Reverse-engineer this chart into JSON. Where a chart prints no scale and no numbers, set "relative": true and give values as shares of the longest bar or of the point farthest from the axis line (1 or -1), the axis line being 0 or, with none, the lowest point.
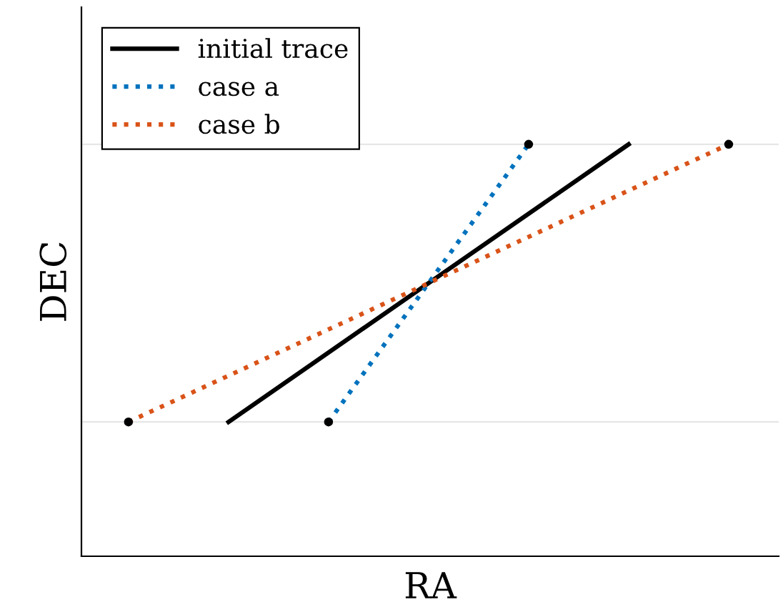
{
  "chart_data": {
    "type": "line",
    "xlabel": "RA",
    "ylabel": "DEC",
    "relative": true,
    "categories": [
      null,
      null,
      null,
      null,
      null,
      null,
      null
    ],
    "series": [
      {
        "name": "initial trace",
        "color": "#000000",
        "line_style": "solid",
        "marker": "none",
        "values": [
          null,
          0.326,
          null,
          0.663,
          null,
          1,
          null
        ]
      },
      {
        "name": "case a",
        "color": "#0072bd",
        "line_style": "dotted",
        "marker": "circle",
        "values": [
          null,
          null,
          0.326,
          0.663,
          1,
          null,
          null
        ]
      },
      {
        "name": "case b",
        "color": "#d95319",
        "line_style": "dotted",
        "marker": "circle",
        "values": [
          0.326,
          null,
          null,
          0.663,
          null,
          null,
          1
        ]
      }
    ],
    "ref_lines": [
      {
        "axis": "y",
        "value": 0.326,
        "color": "#e6e6e6"
      },
      {
        "axis": "y",
        "value": 1,
        "color": "#e6e6e6"
      }
    ],
    "legend": "top left"
  }
}
